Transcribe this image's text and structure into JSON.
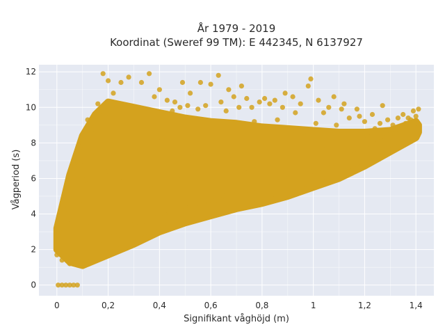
{
  "chart_data": {
    "type": "scatter",
    "title_line1": "År 1979 - 2019",
    "title_line2": "Koordinat (Sweref 99 TM): E 442345, N 6137927",
    "xlabel": "Signifikant våghöjd (m)",
    "ylabel": "Vågperiod (s)",
    "xlim": [
      -0.07,
      1.47
    ],
    "ylim": [
      -0.6,
      12.4
    ],
    "xticks": [
      0,
      0.2,
      0.4,
      0.6,
      0.8,
      1,
      1.2,
      1.4
    ],
    "xtick_labels": [
      "0",
      "0,2",
      "0,4",
      "0,6",
      "0,8",
      "1",
      "1,2",
      "1,4"
    ],
    "yticks": [
      0,
      2,
      4,
      6,
      8,
      10,
      12
    ],
    "ytick_labels": [
      "0",
      "2",
      "4",
      "6",
      "8",
      "10",
      "12"
    ],
    "grid": true,
    "marker_color": "#D4A21E",
    "plot_bg": "#E5E9F2",
    "series": [
      {
        "points": [
          [
            0.005,
            0.0
          ],
          [
            0.02,
            0.0
          ],
          [
            0.035,
            0.0
          ],
          [
            0.05,
            0.0
          ],
          [
            0.065,
            0.0
          ],
          [
            0.08,
            0.0
          ],
          [
            0.0,
            1.7
          ],
          [
            0.01,
            3.0
          ],
          [
            0.02,
            1.4
          ],
          [
            0.03,
            2.5
          ],
          [
            0.03,
            4.2
          ],
          [
            0.05,
            1.2
          ],
          [
            0.05,
            5.8
          ],
          [
            0.06,
            3.6
          ],
          [
            0.07,
            1.5
          ],
          [
            0.08,
            7.0
          ],
          [
            0.08,
            2.6
          ],
          [
            0.09,
            6.8
          ],
          [
            0.1,
            1.2
          ],
          [
            0.1,
            4.8
          ],
          [
            0.1,
            8.0
          ],
          [
            0.11,
            5.9
          ],
          [
            0.12,
            1.6
          ],
          [
            0.12,
            9.3
          ],
          [
            0.13,
            3.3
          ],
          [
            0.14,
            7.5
          ],
          [
            0.15,
            8.7
          ],
          [
            0.15,
            2.0
          ],
          [
            0.16,
            10.2
          ],
          [
            0.17,
            5.2
          ],
          [
            0.18,
            11.9
          ],
          [
            0.18,
            2.3
          ],
          [
            0.19,
            9.6
          ],
          [
            0.2,
            6.4
          ],
          [
            0.2,
            11.5
          ],
          [
            0.21,
            3.0
          ],
          [
            0.22,
            10.8
          ],
          [
            0.23,
            8.1
          ],
          [
            0.24,
            2.8
          ],
          [
            0.25,
            11.4
          ],
          [
            0.26,
            6.0
          ],
          [
            0.27,
            9.4
          ],
          [
            0.28,
            11.7
          ],
          [
            0.29,
            3.4
          ],
          [
            0.3,
            10.0
          ],
          [
            0.31,
            7.6
          ],
          [
            0.32,
            3.3
          ],
          [
            0.33,
            11.4
          ],
          [
            0.34,
            9.9
          ],
          [
            0.35,
            3.5
          ],
          [
            0.36,
            11.9
          ],
          [
            0.37,
            5.4
          ],
          [
            0.38,
            10.6
          ],
          [
            0.39,
            3.8
          ],
          [
            0.4,
            11.0
          ],
          [
            0.41,
            8.2
          ],
          [
            0.42,
            4.0
          ],
          [
            0.43,
            10.4
          ],
          [
            0.44,
            4.0
          ],
          [
            0.45,
            9.8
          ],
          [
            0.46,
            10.3
          ],
          [
            0.47,
            6.1
          ],
          [
            0.48,
            10.0
          ],
          [
            0.49,
            11.4
          ],
          [
            0.5,
            4.4
          ],
          [
            0.51,
            10.1
          ],
          [
            0.52,
            10.8
          ],
          [
            0.53,
            7.2
          ],
          [
            0.54,
            4.5
          ],
          [
            0.55,
            9.9
          ],
          [
            0.56,
            11.4
          ],
          [
            0.57,
            5.8
          ],
          [
            0.58,
            10.1
          ],
          [
            0.59,
            4.7
          ],
          [
            0.6,
            11.3
          ],
          [
            0.61,
            8.4
          ],
          [
            0.62,
            4.8
          ],
          [
            0.63,
            11.8
          ],
          [
            0.64,
            10.3
          ],
          [
            0.65,
            5.0
          ],
          [
            0.66,
            9.8
          ],
          [
            0.67,
            11.0
          ],
          [
            0.68,
            7.3
          ],
          [
            0.69,
            10.6
          ],
          [
            0.7,
            5.1
          ],
          [
            0.71,
            10.0
          ],
          [
            0.72,
            11.2
          ],
          [
            0.73,
            6.4
          ],
          [
            0.74,
            10.5
          ],
          [
            0.75,
            5.3
          ],
          [
            0.76,
            10.0
          ],
          [
            0.77,
            9.2
          ],
          [
            0.78,
            5.4
          ],
          [
            0.79,
            10.3
          ],
          [
            0.8,
            8.0
          ],
          [
            0.81,
            10.5
          ],
          [
            0.82,
            5.6
          ],
          [
            0.83,
            10.2
          ],
          [
            0.84,
            6.8
          ],
          [
            0.85,
            10.4
          ],
          [
            0.86,
            9.3
          ],
          [
            0.87,
            5.8
          ],
          [
            0.88,
            10.0
          ],
          [
            0.89,
            10.8
          ],
          [
            0.9,
            6.0
          ],
          [
            0.91,
            7.9
          ],
          [
            0.92,
            10.6
          ],
          [
            0.93,
            9.7
          ],
          [
            0.94,
            6.1
          ],
          [
            0.95,
            10.2
          ],
          [
            0.96,
            8.6
          ],
          [
            0.97,
            6.3
          ],
          [
            0.98,
            11.2
          ],
          [
            0.99,
            11.6
          ],
          [
            1.0,
            6.4
          ],
          [
            1.01,
            9.1
          ],
          [
            1.02,
            10.4
          ],
          [
            1.03,
            6.6
          ],
          [
            1.04,
            9.7
          ],
          [
            1.05,
            7.8
          ],
          [
            1.06,
            10.0
          ],
          [
            1.07,
            6.8
          ],
          [
            1.08,
            10.6
          ],
          [
            1.09,
            9.0
          ],
          [
            1.1,
            7.0
          ],
          [
            1.11,
            9.9
          ],
          [
            1.12,
            10.2
          ],
          [
            1.13,
            7.2
          ],
          [
            1.14,
            9.4
          ],
          [
            1.15,
            8.5
          ],
          [
            1.16,
            7.4
          ],
          [
            1.17,
            9.9
          ],
          [
            1.18,
            9.5
          ],
          [
            1.19,
            7.6
          ],
          [
            1.2,
            9.2
          ],
          [
            1.21,
            8.4
          ],
          [
            1.22,
            7.9
          ],
          [
            1.23,
            9.6
          ],
          [
            1.24,
            8.8
          ],
          [
            1.25,
            8.1
          ],
          [
            1.26,
            9.1
          ],
          [
            1.27,
            10.1
          ],
          [
            1.28,
            8.3
          ],
          [
            1.29,
            9.3
          ],
          [
            1.3,
            8.5
          ],
          [
            1.31,
            9.0
          ],
          [
            1.32,
            8.7
          ],
          [
            1.33,
            9.4
          ],
          [
            1.34,
            8.9
          ],
          [
            1.35,
            9.6
          ],
          [
            1.36,
            9.1
          ],
          [
            1.37,
            9.4
          ],
          [
            1.38,
            9.3
          ],
          [
            1.39,
            9.8
          ],
          [
            1.4,
            9.5
          ],
          [
            1.41,
            9.9
          ],
          [
            1.41,
            9.0
          ]
        ]
      }
    ]
  }
}
